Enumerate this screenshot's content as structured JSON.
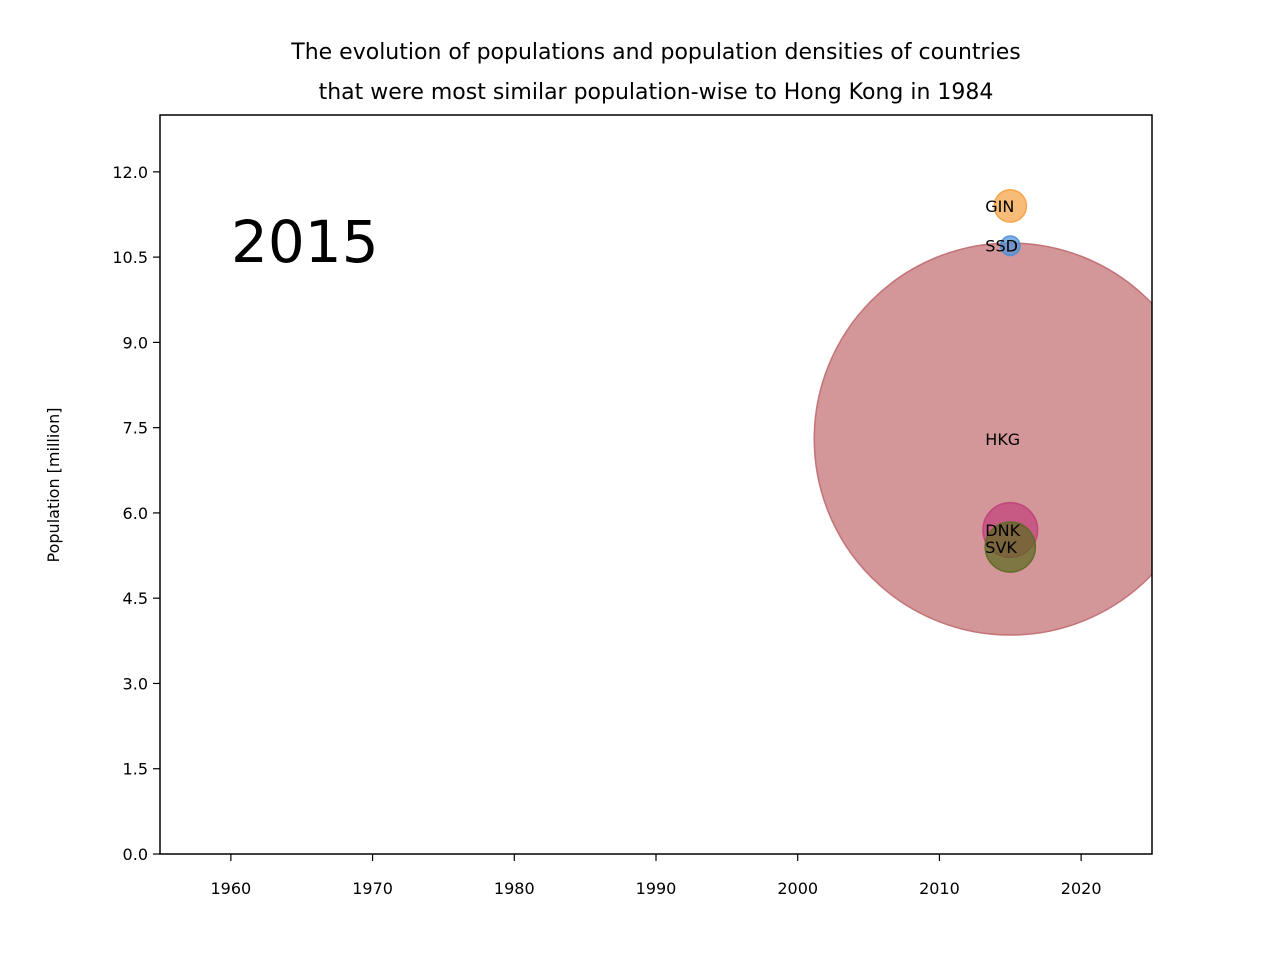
{
  "chart_data": {
    "type": "scatter",
    "title_lines": [
      "The evolution of populations and population densities of countries",
      "that were most similar population-wise to Hong Kong in 1984"
    ],
    "xlabel": "",
    "ylabel": "Population [million]",
    "xlim": [
      1955,
      2025
    ],
    "ylim": [
      0,
      13
    ],
    "xticks": [
      1960,
      1970,
      1980,
      1990,
      2000,
      2010,
      2020
    ],
    "yticks": [
      "0.0",
      "1.5",
      "3.0",
      "4.5",
      "6.0",
      "7.5",
      "9.0",
      "10.5",
      "12.0"
    ],
    "year_label": "2015",
    "grid": false,
    "points": [
      {
        "label": "HKG",
        "x": 2015,
        "y": 7.3,
        "density": 6900,
        "color": "#c06a6e"
      },
      {
        "label": "GIN",
        "x": 2015,
        "y": 11.4,
        "density": 47,
        "color": "#f5a040"
      },
      {
        "label": "SSD",
        "x": 2015,
        "y": 10.7,
        "density": 17,
        "color": "#4a90d9"
      },
      {
        "label": "DNK",
        "x": 2015,
        "y": 5.7,
        "density": 134,
        "color": "#c0407a"
      },
      {
        "label": "SVK",
        "x": 2015,
        "y": 5.4,
        "density": 113,
        "color": "#5a6a20"
      }
    ]
  }
}
